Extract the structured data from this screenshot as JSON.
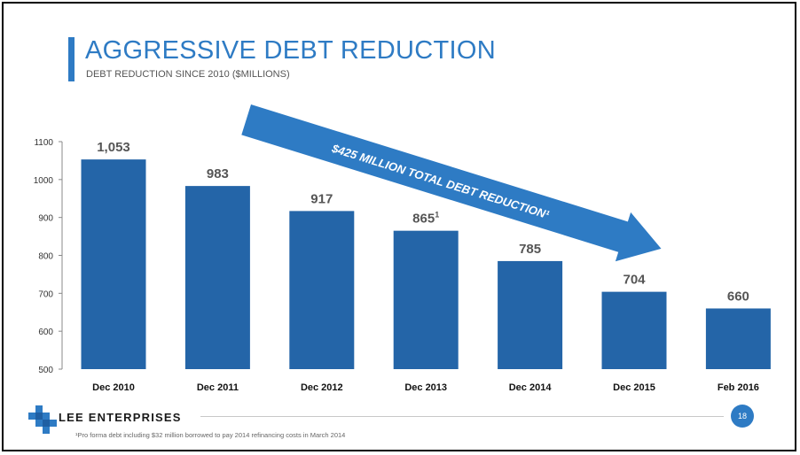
{
  "slide": {
    "title": "AGGRESSIVE DEBT REDUCTION",
    "subtitle": "DEBT REDUCTION SINCE 2010 ($MILLIONS)",
    "company": "LEE ENTERPRISES",
    "page_number": "18",
    "footnote": "¹Pro forma debt including $32 million borrowed to pay 2014 refinancing costs in March 2014",
    "colors": {
      "accent": "#2e7bc4",
      "bar": "#2465a8",
      "label": "#555555"
    }
  },
  "chart_data": {
    "type": "bar",
    "categories": [
      "Dec 2010",
      "Dec 2011",
      "Dec 2012",
      "Dec 2013",
      "Dec 2014",
      "Dec 2015",
      "Feb 2016"
    ],
    "values": [
      1053,
      983,
      917,
      865,
      785,
      704,
      660
    ],
    "data_labels": [
      "1,053",
      "983",
      "917",
      "865",
      "785",
      "704",
      "660"
    ],
    "data_label_superscripts": [
      "",
      "",
      "",
      "1",
      "",
      "",
      ""
    ],
    "ylim": [
      500,
      1100
    ],
    "yticks": [
      500,
      600,
      700,
      800,
      900,
      1000,
      1100
    ],
    "grid": false,
    "annotation": "$425 MILLION TOTAL DEBT REDUCTION¹"
  }
}
